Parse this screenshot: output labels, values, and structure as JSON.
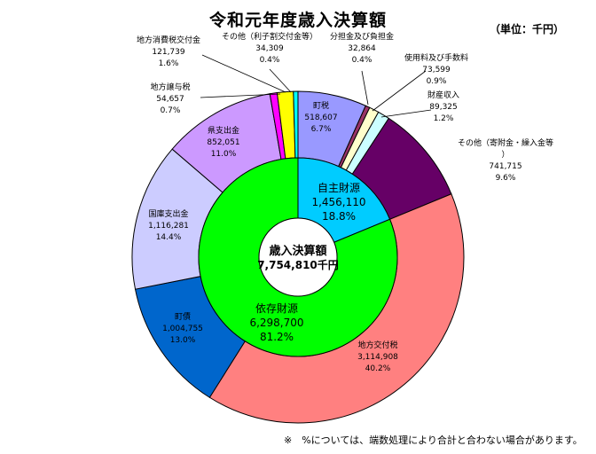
{
  "title": "令和元年度歳入決算額",
  "unit": "（単位：千円）",
  "note": "※　%については、端数処理により合計と合わない場合があります。",
  "center": {
    "line1": "歳入決算額",
    "line2": "7,754,810千円"
  },
  "chart_data": {
    "type": "pie",
    "total": 7754810,
    "inner": [
      {
        "name": "自主財源",
        "value": "1,456,110",
        "pct": "18.8%",
        "num": 1456110,
        "color": "#00ccff"
      },
      {
        "name": "依存財源",
        "value": "6,298,700",
        "pct": "81.2%",
        "num": 6298700,
        "color": "#00ff00"
      }
    ],
    "outer": [
      {
        "name": "町税",
        "value": "518,607",
        "pct": "6.7%",
        "num": 518607,
        "color": "#9999ff"
      },
      {
        "name": "分担金及び負担金",
        "value": "32,864",
        "pct": "0.4%",
        "num": 32864,
        "color": "#993366"
      },
      {
        "name": "使用料及び手数料",
        "value": "73,599",
        "pct": "0.9%",
        "num": 73599,
        "color": "#ffffcc"
      },
      {
        "name": "財産収入",
        "value": "89,325",
        "pct": "1.2%",
        "num": 89325,
        "color": "#ccffff"
      },
      {
        "name": "その他（寄附金・繰入金等）",
        "value": "741,715",
        "pct": "9.6%",
        "num": 741715,
        "color": "#660066"
      },
      {
        "name": "地方交付税",
        "value": "3,114,908",
        "pct": "40.2%",
        "num": 3114908,
        "color": "#ff8080"
      },
      {
        "name": "町債",
        "value": "1,004,755",
        "pct": "13.0%",
        "num": 1004755,
        "color": "#0066cc"
      },
      {
        "name": "国庫支出金",
        "value": "1,116,281",
        "pct": "14.4%",
        "num": 1116281,
        "color": "#ccccff"
      },
      {
        "name": "県支出金",
        "value": "852,051",
        "pct": "11.0%",
        "num": 852051,
        "color": "#cc99ff"
      },
      {
        "name": "地方譲与税",
        "value": "54,657",
        "pct": "0.7%",
        "num": 54657,
        "color": "#ff00ff"
      },
      {
        "name": "地方消費税交付金",
        "value": "121,739",
        "pct": "1.6%",
        "num": 121739,
        "color": "#ffff00"
      },
      {
        "name": "その他（利子割交付金等）",
        "value": "34,309",
        "pct": "0.4%",
        "num": 34309,
        "color": "#00ffff"
      }
    ]
  }
}
